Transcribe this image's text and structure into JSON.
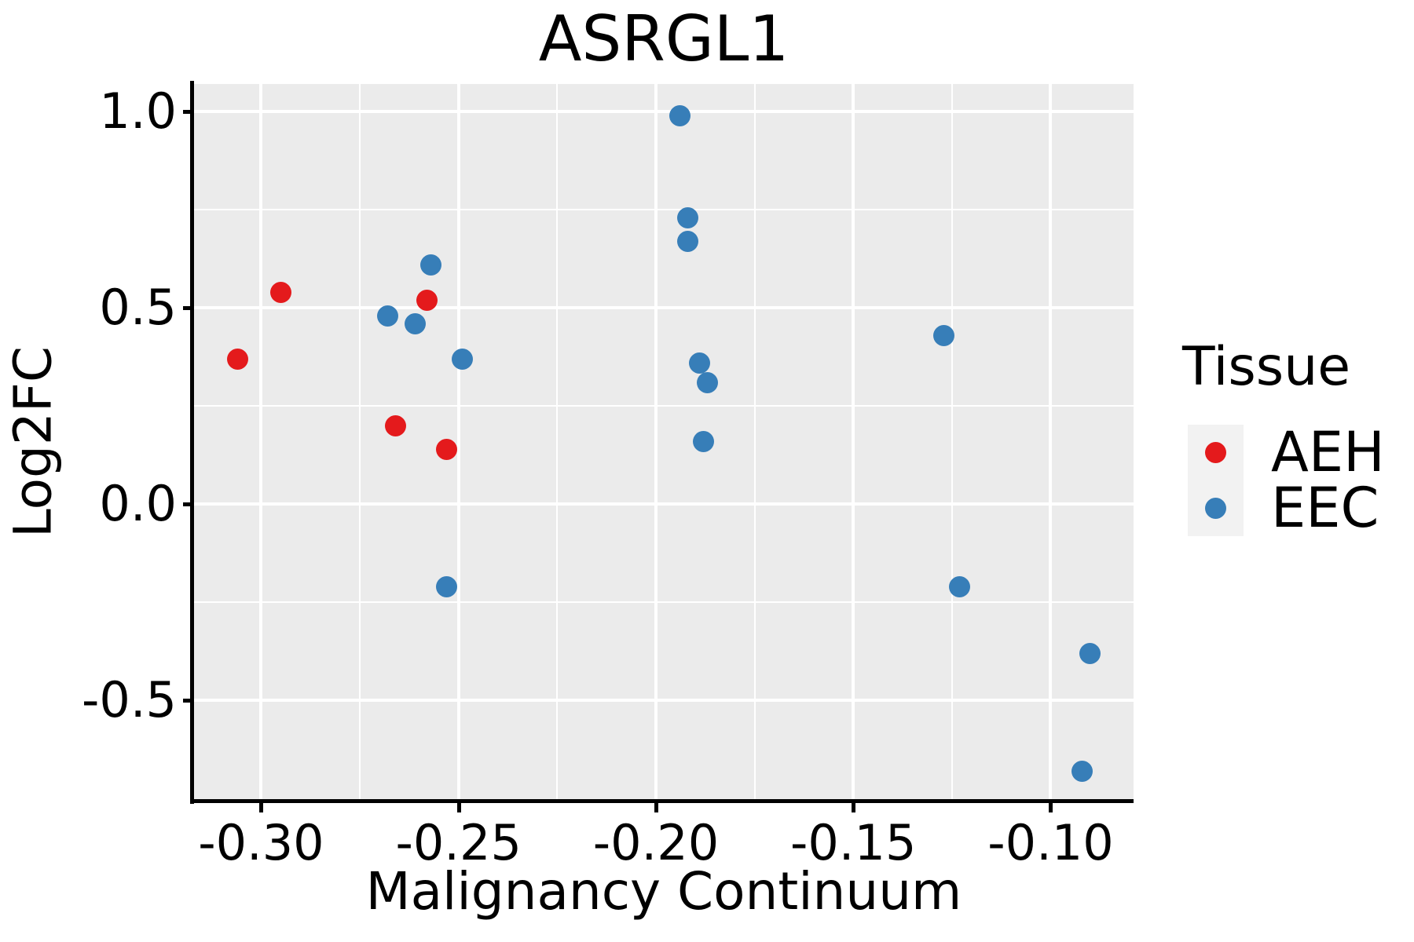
{
  "title": "ASRGL1",
  "axes": {
    "x": {
      "label": "Malignancy Continuum"
    },
    "y": {
      "label": "Log2FC"
    }
  },
  "legend": {
    "title": "Tissue",
    "items": [
      {
        "label": "AEH",
        "color": "#E41A1C"
      },
      {
        "label": "EEC",
        "color": "#377EB8"
      }
    ]
  },
  "colors": {
    "panel_bg": "#EBEBEB",
    "grid": "#FFFFFF",
    "axis": "#000000",
    "text": "#000000",
    "legend_key_bg": "#F2F2F2",
    "aeh": "#E41A1C",
    "eec": "#377EB8"
  },
  "chart_data": {
    "type": "scatter",
    "title": "ASRGL1",
    "xlabel": "Malignancy Continuum",
    "ylabel": "Log2FC",
    "xlim": [
      -0.317,
      -0.079
    ],
    "ylim": [
      -0.756,
      1.07
    ],
    "grid": "white major+minor on grey panel",
    "legend_position": "right",
    "x_ticks": [
      {
        "value": -0.3,
        "label": "-0.30"
      },
      {
        "value": -0.25,
        "label": "-0.25"
      },
      {
        "value": -0.2,
        "label": "-0.20"
      },
      {
        "value": -0.15,
        "label": "-0.15"
      },
      {
        "value": -0.1,
        "label": "-0.10"
      }
    ],
    "y_ticks": [
      {
        "value": 1.0,
        "label": "1.0"
      },
      {
        "value": 0.5,
        "label": "0.5"
      },
      {
        "value": 0.0,
        "label": "0.0"
      },
      {
        "value": -0.5,
        "label": "-0.5"
      }
    ],
    "x_minor": [
      -0.275,
      -0.225,
      -0.175,
      -0.125
    ],
    "y_minor": [
      0.75,
      0.25,
      -0.25
    ],
    "series": [
      {
        "name": "AEH",
        "color": "#E41A1C",
        "points": [
          [
            -0.295,
            0.54
          ],
          [
            -0.258,
            0.52
          ],
          [
            -0.306,
            0.37
          ],
          [
            -0.266,
            0.2
          ],
          [
            -0.253,
            0.14
          ]
        ]
      },
      {
        "name": "EEC",
        "color": "#377EB8",
        "points": [
          [
            -0.194,
            0.99
          ],
          [
            -0.192,
            0.73
          ],
          [
            -0.192,
            0.67
          ],
          [
            -0.257,
            0.61
          ],
          [
            -0.268,
            0.48
          ],
          [
            -0.261,
            0.46
          ],
          [
            -0.249,
            0.37
          ],
          [
            -0.189,
            0.36
          ],
          [
            -0.187,
            0.31
          ],
          [
            -0.127,
            0.43
          ],
          [
            -0.188,
            0.16
          ],
          [
            -0.253,
            -0.21
          ],
          [
            -0.123,
            -0.21
          ],
          [
            -0.09,
            -0.38
          ],
          [
            -0.092,
            -0.68
          ]
        ]
      }
    ]
  }
}
